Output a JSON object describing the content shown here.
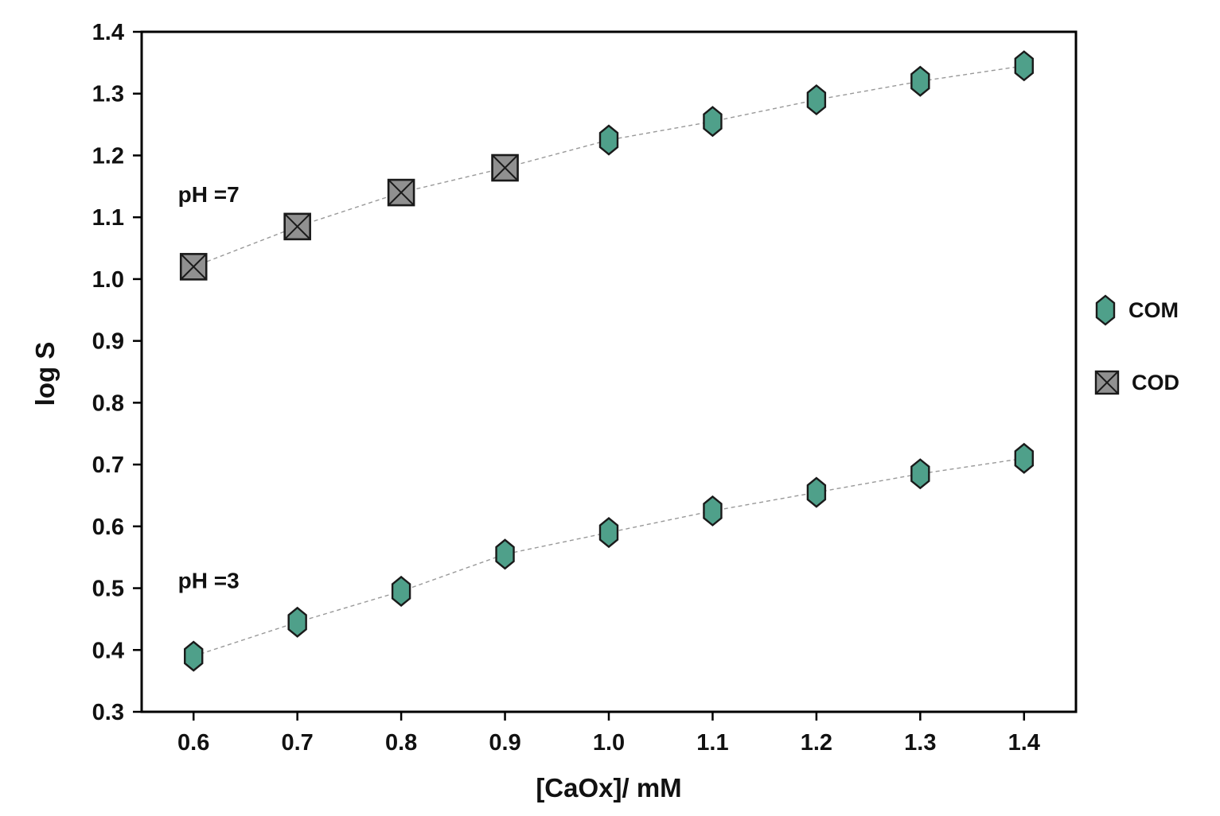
{
  "chart_data": {
    "type": "scatter",
    "title": "",
    "xlabel": "[CaOx]/ mM",
    "ylabel": "log S",
    "xlim": [
      0.55,
      1.45
    ],
    "ylim": [
      0.3,
      1.4
    ],
    "x_ticks": [
      0.6,
      0.7,
      0.8,
      0.9,
      1.0,
      1.1,
      1.2,
      1.3,
      1.4
    ],
    "y_ticks": [
      0.3,
      0.4,
      0.5,
      0.6,
      0.7,
      0.8,
      0.9,
      1.0,
      1.1,
      1.2,
      1.3,
      1.4
    ],
    "grid": false,
    "legend_position": "right-outside",
    "line_style": "dashed",
    "colors": {
      "com_fill": "#4fa08a",
      "cod_fill": "#909090",
      "line": "#999999",
      "marker_stroke": "#1a1a1a",
      "axis": "#000000"
    },
    "series": [
      {
        "name": "pH = 7",
        "x": [
          0.6,
          0.7,
          0.8,
          0.9,
          1.0,
          1.1,
          1.2,
          1.3,
          1.4
        ],
        "y": [
          1.02,
          1.085,
          1.14,
          1.18,
          1.225,
          1.255,
          1.29,
          1.32,
          1.345
        ],
        "markers": [
          "COD",
          "COD",
          "COD",
          "COD",
          "COM",
          "COM",
          "COM",
          "COM",
          "COM"
        ]
      },
      {
        "name": "pH = 3",
        "x": [
          0.6,
          0.7,
          0.8,
          0.9,
          1.0,
          1.1,
          1.2,
          1.3,
          1.4
        ],
        "y": [
          0.39,
          0.445,
          0.495,
          0.555,
          0.59,
          0.625,
          0.655,
          0.685,
          0.71
        ],
        "markers": [
          "COM",
          "COM",
          "COM",
          "COM",
          "COM",
          "COM",
          "COM",
          "COM",
          "COM"
        ]
      }
    ],
    "legend": [
      {
        "label": "COM",
        "marker": "COM"
      },
      {
        "label": "COD",
        "marker": "COD"
      }
    ],
    "annotations": [
      {
        "text": "pH =7",
        "x": 0.585,
        "y": 1.125
      },
      {
        "text": "pH =3",
        "x": 0.585,
        "y": 0.5
      }
    ]
  }
}
